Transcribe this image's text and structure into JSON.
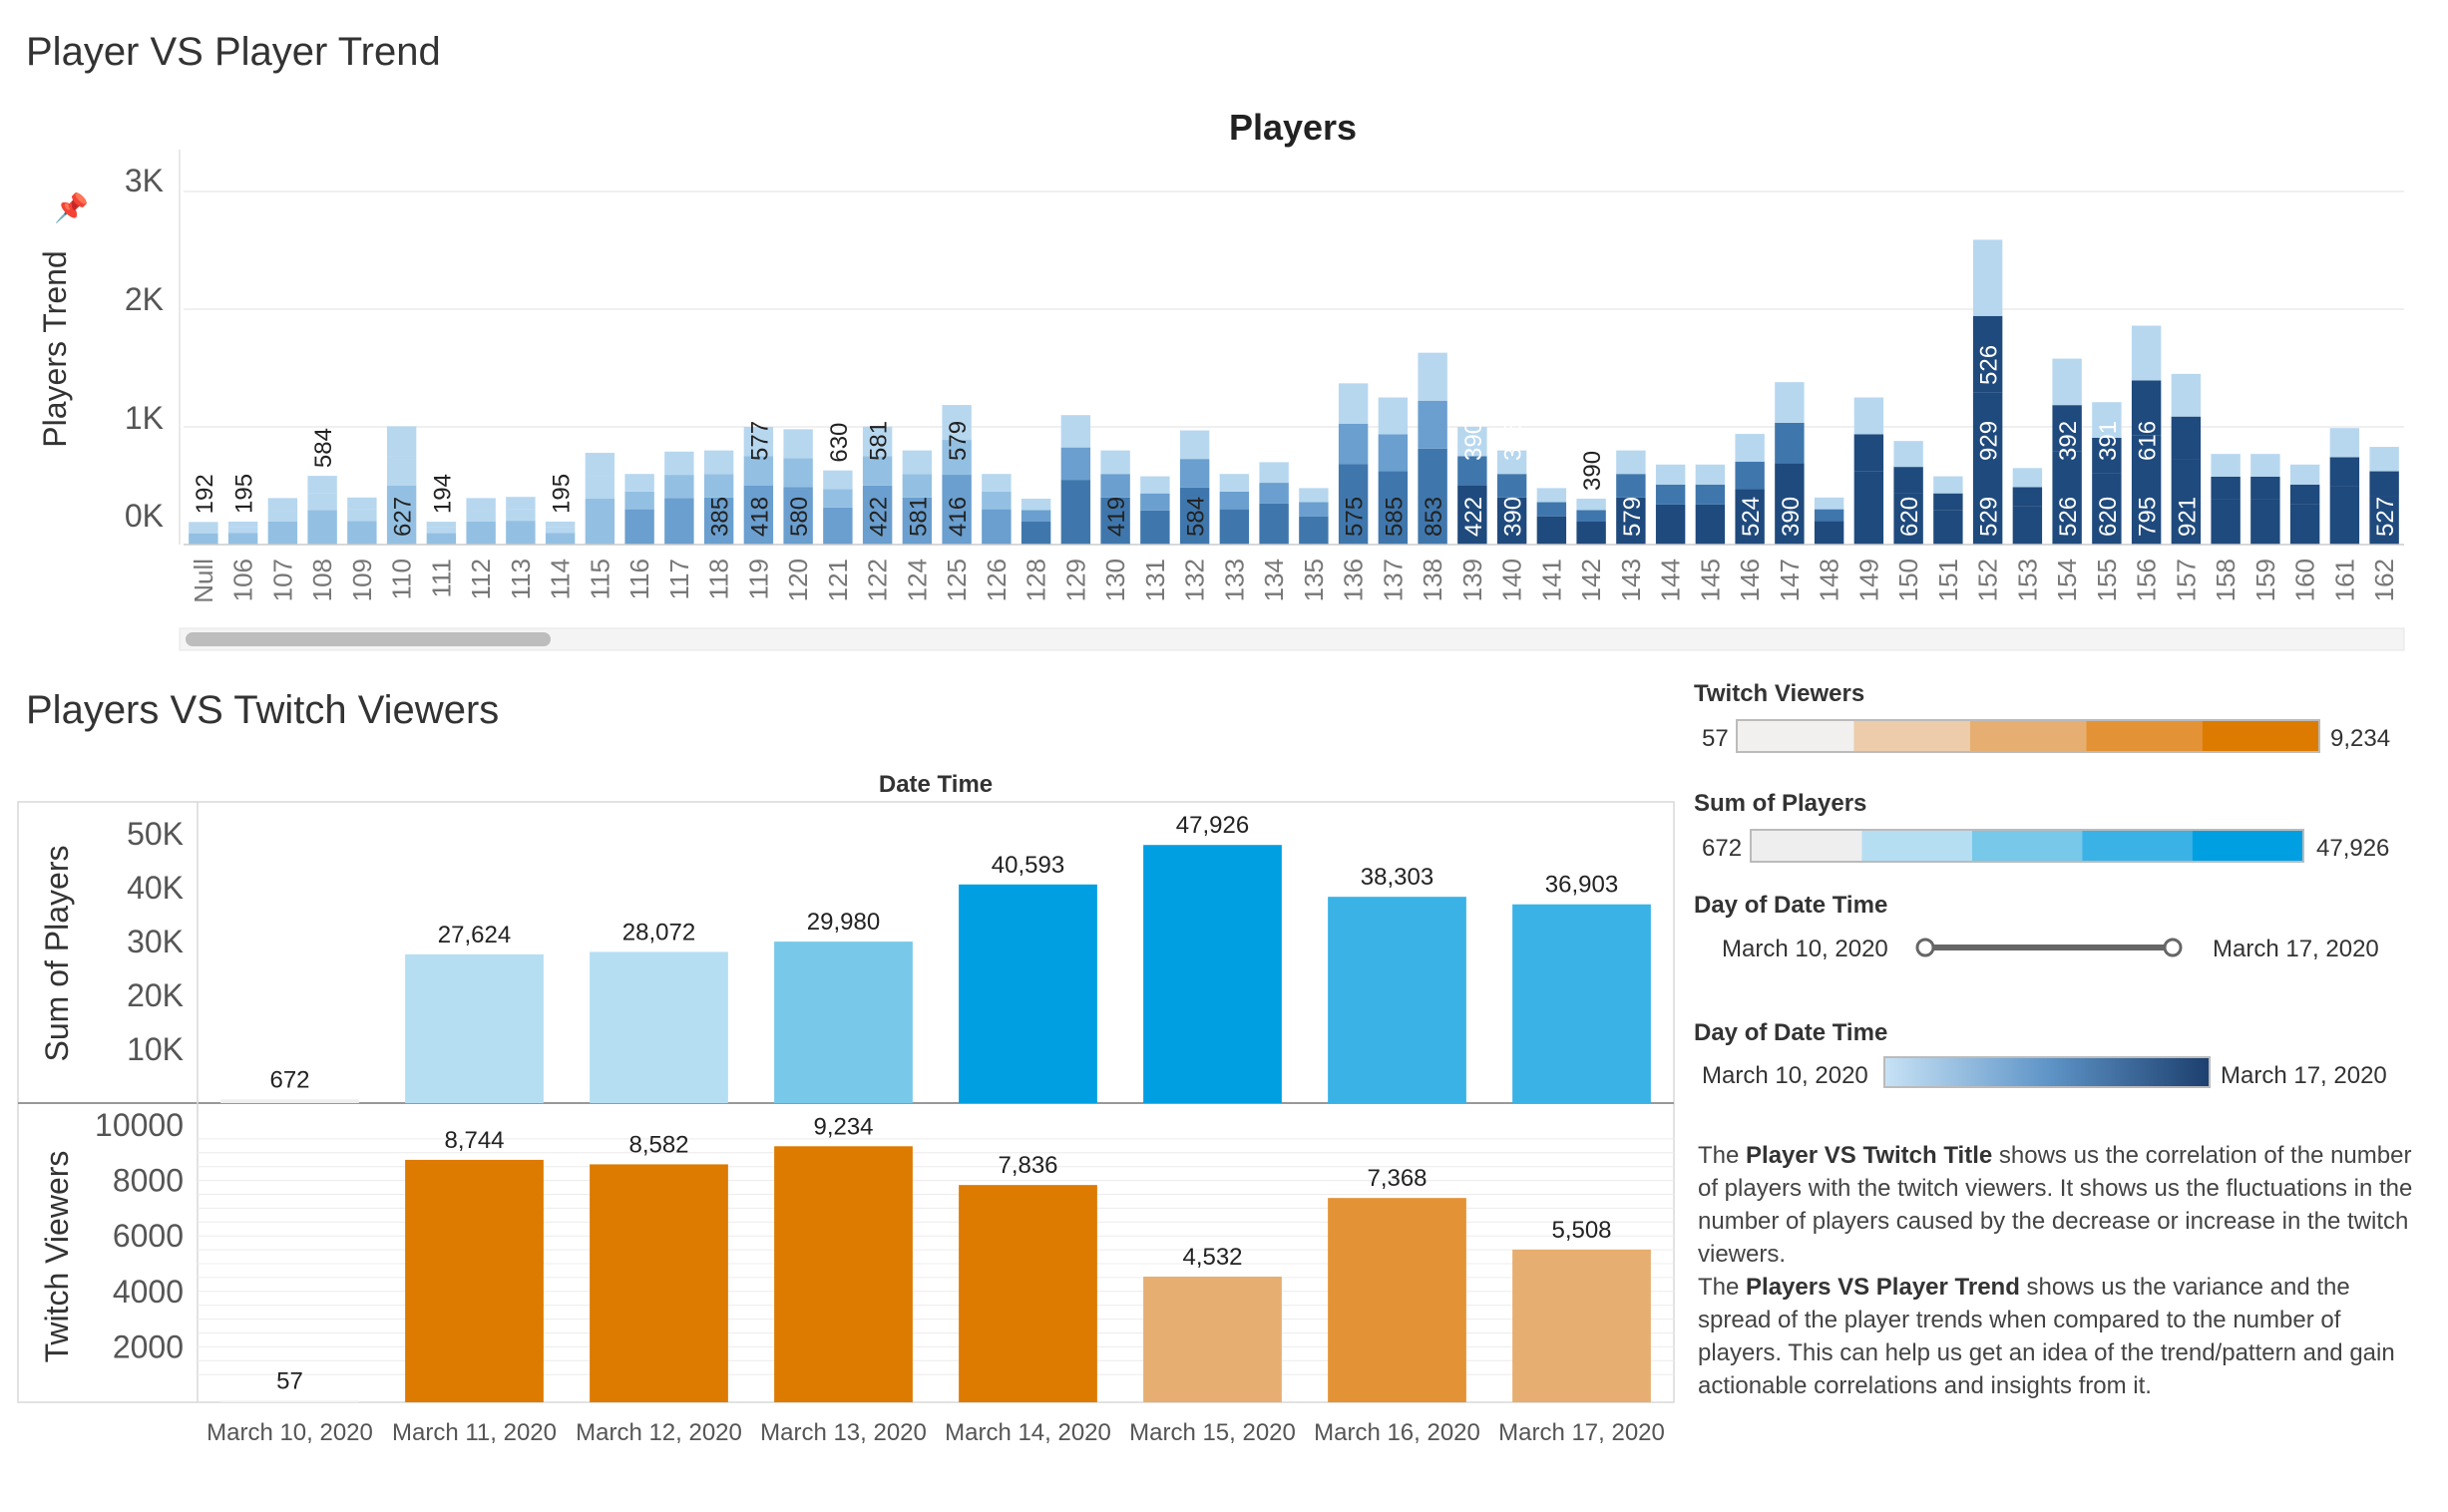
{
  "dashboard": {
    "title": "Player VS Player Trend",
    "section2_title": "Players VS Twitch Viewers",
    "description_1_pre": "The ",
    "description_1_bold": "Player VS Twitch Title",
    "description_1_post": " shows us the correlation of the number of players with the twitch viewers. It shows us the fluctuations in the number of players caused by the decrease or increase in the twitch viewers.",
    "description_2_pre": "The ",
    "description_2_bold": "Players VS Player Trend",
    "description_2_post": " shows us the variance and the spread of the player trends when compared to the number of players. This can help us get an idea of the trend/pattern and gain actionable correlations and insights from it.",
    "colors": {
      "blue_scale": [
        "#b7d7ef",
        "#93c0e2",
        "#6a9fcf",
        "#3f77ad",
        "#1f4a7d"
      ],
      "sum_scale": [
        "#eeeeee",
        "#b5def2",
        "#77c8e9",
        "#3ab2e6",
        "#009fe2"
      ],
      "twitch_scale": [
        "#f1f0ee",
        "#ecccaa",
        "#e6ae70",
        "#e39236",
        "#dd7a00"
      ]
    }
  },
  "legends": {
    "twitch": {
      "title": "Twitch Viewers",
      "min": "57",
      "max": "9,234"
    },
    "sum": {
      "title": "Sum of Players",
      "min": "672",
      "max": "47,926"
    },
    "slider": {
      "title": "Day of Date Time",
      "min": "March 10, 2020",
      "max": "March 17, 2020"
    },
    "date_gradient": {
      "title": "Day of Date Time",
      "min": "March 10, 2020",
      "max": "March 17, 2020"
    }
  },
  "chart_data": [
    {
      "type": "bar",
      "stacked": true,
      "title": "Players",
      "ylabel": "Players Trend",
      "ylim": [
        0,
        3000
      ],
      "yticks": [
        "0K",
        "1K",
        "2K",
        "3K"
      ],
      "categories": [
        "Null",
        "106",
        "107",
        "108",
        "109",
        "110",
        "111",
        "112",
        "113",
        "114",
        "115",
        "116",
        "117",
        "118",
        "119",
        "120",
        "121",
        "122",
        "124",
        "125",
        "126",
        "128",
        "129",
        "130",
        "131",
        "132",
        "133",
        "134",
        "135",
        "136",
        "137",
        "138",
        "139",
        "140",
        "141",
        "142",
        "143",
        "144",
        "145",
        "146",
        "147",
        "148",
        "149",
        "150",
        "151",
        "152",
        "153",
        "154",
        "155",
        "156",
        "157",
        "158",
        "159",
        "160",
        "161",
        "162"
      ],
      "totals": [
        192,
        195,
        395,
        584,
        400,
        1005,
        194,
        395,
        405,
        195,
        780,
        600,
        790,
        800,
        1000,
        980,
        630,
        1003,
        800,
        1186,
        600,
        390,
        1100,
        800,
        580,
        970,
        600,
        700,
        480,
        1370,
        1250,
        1630,
        1000,
        800,
        480,
        390,
        800,
        680,
        680,
        940,
        1380,
        400,
        1250,
        880,
        580,
        2590,
        650,
        1580,
        1210,
        1860,
        1450,
        770,
        770,
        680,
        990,
        830
      ],
      "labels": [
        "192",
        "195",
        "",
        "584",
        "",
        "627",
        "194",
        "",
        "",
        "195",
        "",
        "",
        "",
        "385",
        "418 577",
        "580",
        "630",
        "422 581",
        "581",
        "416 579",
        "",
        "",
        "",
        "419",
        "",
        "584",
        "",
        "",
        "",
        "575",
        "585",
        "853",
        "422 390",
        "390 385",
        "",
        "390",
        "579",
        "",
        "",
        "524",
        "390",
        "",
        "",
        "620",
        "",
        "529 929 526",
        "",
        "526 392",
        "620 391",
        "795 616",
        "921",
        "",
        "",
        "",
        "",
        "527"
      ],
      "label_note": "segment values printed vertically on bars"
    },
    {
      "type": "bar",
      "title": "Date Time",
      "ylabel": "Sum of Players",
      "ylim": [
        0,
        50000
      ],
      "yticks": [
        "10K",
        "20K",
        "30K",
        "40K",
        "50K"
      ],
      "categories": [
        "March 10, 2020",
        "March 11, 2020",
        "March 12, 2020",
        "March 13, 2020",
        "March 14, 2020",
        "March 15, 2020",
        "March 16, 2020",
        "March 17, 2020"
      ],
      "values": [
        672,
        27624,
        28072,
        29980,
        40593,
        47926,
        38303,
        36903
      ],
      "value_labels": [
        "672",
        "27,624",
        "28,072",
        "29,980",
        "40,593",
        "47,926",
        "38,303",
        "36,903"
      ]
    },
    {
      "type": "bar",
      "ylabel": "Twitch Viewers",
      "ylim": [
        0,
        10000
      ],
      "yticks": [
        "2000",
        "4000",
        "6000",
        "8000",
        "10000"
      ],
      "categories": [
        "March 10, 2020",
        "March 11, 2020",
        "March 12, 2020",
        "March 13, 2020",
        "March 14, 2020",
        "March 15, 2020",
        "March 16, 2020",
        "March 17, 2020"
      ],
      "values": [
        57,
        8744,
        8582,
        9234,
        7836,
        4532,
        7368,
        5508
      ],
      "value_labels": [
        "57",
        "8,744",
        "8,582",
        "9,234",
        "7,836",
        "4,532",
        "7,368",
        "5,508"
      ]
    }
  ]
}
